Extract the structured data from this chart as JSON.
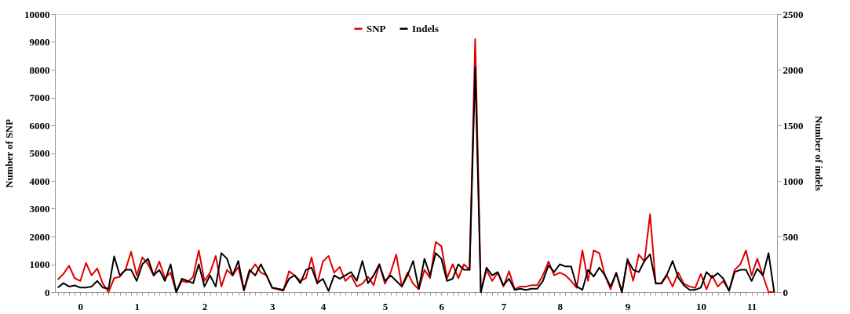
{
  "chart_data": {
    "type": "line",
    "ylabel": "Number of SNP",
    "y2label": "Number of indels",
    "categories": [
      null,
      null,
      null,
      null,
      "0",
      null,
      null,
      null,
      null,
      null,
      null,
      null,
      null,
      null,
      "1",
      null,
      null,
      null,
      null,
      null,
      null,
      null,
      null,
      null,
      null,
      null,
      "2",
      null,
      null,
      null,
      null,
      null,
      null,
      null,
      null,
      null,
      null,
      null,
      "3",
      null,
      null,
      null,
      null,
      null,
      null,
      null,
      null,
      "4",
      null,
      null,
      null,
      null,
      null,
      null,
      null,
      null,
      null,
      null,
      "5",
      null,
      null,
      null,
      null,
      null,
      null,
      null,
      null,
      null,
      "6",
      null,
      null,
      null,
      null,
      null,
      null,
      null,
      null,
      null,
      null,
      "7",
      null,
      null,
      null,
      null,
      null,
      null,
      null,
      null,
      null,
      "8",
      null,
      null,
      null,
      null,
      null,
      null,
      null,
      null,
      null,
      null,
      null,
      "9",
      null,
      null,
      null,
      null,
      null,
      null,
      null,
      null,
      null,
      null,
      null,
      null,
      "10",
      null,
      null,
      null,
      null,
      null,
      null,
      null,
      null,
      "11",
      null,
      null,
      null,
      null
    ],
    "series": [
      {
        "name": "SNP",
        "color": "#e00000",
        "values": [
          450,
          650,
          950,
          500,
          400,
          1050,
          600,
          850,
          300,
          0,
          500,
          550,
          800,
          1450,
          600,
          1250,
          1000,
          600,
          1100,
          500,
          700,
          0,
          400,
          350,
          550,
          1500,
          400,
          700,
          1300,
          200,
          800,
          600,
          900,
          50,
          700,
          1000,
          700,
          600,
          150,
          100,
          50,
          750,
          600,
          400,
          500,
          1250,
          300,
          1100,
          1300,
          700,
          900,
          400,
          600,
          200,
          300,
          550,
          250,
          1000,
          300,
          700,
          1350,
          200,
          700,
          300,
          100,
          800,
          500,
          1800,
          1650,
          500,
          1000,
          500,
          1000,
          800,
          9100,
          0,
          800,
          400,
          700,
          200,
          750,
          100,
          200,
          200,
          250,
          250,
          600,
          1100,
          600,
          700,
          600,
          400,
          150,
          1500,
          400,
          1500,
          1400,
          600,
          100,
          700,
          0,
          1200,
          400,
          1350,
          1100,
          2800,
          300,
          300,
          600,
          200,
          700,
          300,
          200,
          150,
          650,
          100,
          600,
          200,
          400,
          50,
          800,
          1000,
          1500,
          600,
          1200,
          600,
          0,
          0
        ]
      },
      {
        "name": "Indels",
        "color": "#000000",
        "axis": "y2",
        "values": [
          40,
          80,
          50,
          60,
          40,
          40,
          50,
          100,
          40,
          30,
          320,
          150,
          200,
          200,
          100,
          250,
          300,
          150,
          200,
          100,
          250,
          0,
          120,
          100,
          80,
          250,
          50,
          150,
          50,
          350,
          300,
          150,
          280,
          20,
          200,
          150,
          250,
          150,
          40,
          30,
          20,
          120,
          150,
          80,
          200,
          220,
          80,
          120,
          10,
          150,
          120,
          150,
          180,
          100,
          280,
          80,
          150,
          250,
          100,
          150,
          100,
          50,
          150,
          280,
          30,
          300,
          150,
          350,
          300,
          100,
          120,
          250,
          200,
          200,
          2020,
          0,
          220,
          150,
          180,
          60,
          120,
          20,
          30,
          20,
          30,
          30,
          100,
          240,
          180,
          250,
          230,
          230,
          50,
          20,
          200,
          140,
          220,
          150,
          50,
          170,
          0,
          290,
          200,
          180,
          280,
          340,
          80,
          80,
          160,
          280,
          130,
          60,
          20,
          20,
          40,
          180,
          130,
          170,
          120,
          10,
          180,
          200,
          200,
          100,
          210,
          150,
          350,
          0
        ]
      }
    ],
    "ylim": [
      0,
      10000
    ],
    "yticks": [
      0,
      1000,
      2000,
      3000,
      4000,
      5000,
      6000,
      7000,
      8000,
      9000,
      10000
    ],
    "y2lim": [
      0,
      2500
    ],
    "y2ticks": [
      0,
      500,
      1000,
      1500,
      2000,
      2500
    ],
    "legend": "top",
    "grid": false,
    "line_style": "solid",
    "marker": "none"
  }
}
